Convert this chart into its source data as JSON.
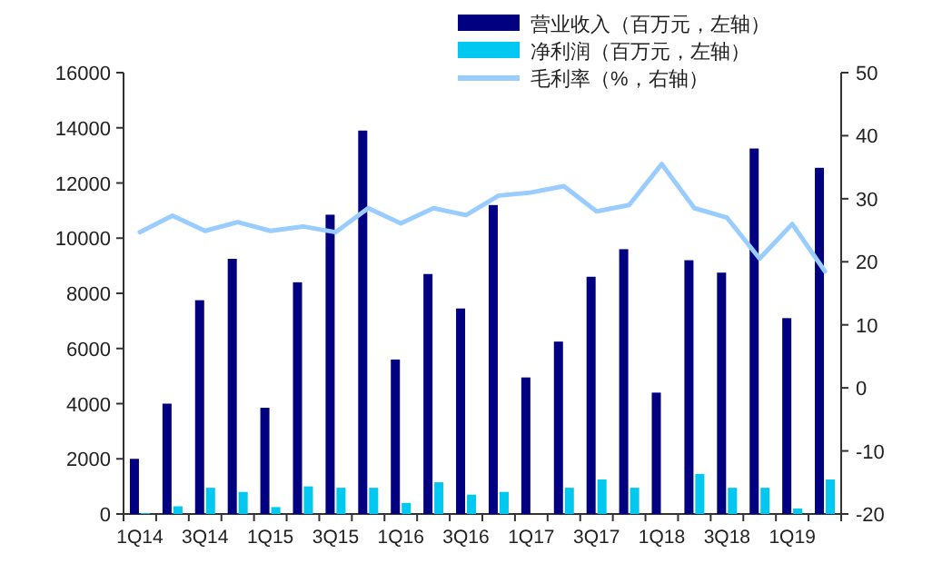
{
  "chart_data": {
    "type": "bar",
    "categories": [
      "1Q14",
      null,
      "3Q14",
      null,
      "1Q15",
      null,
      "3Q15",
      null,
      "1Q16",
      null,
      "3Q16",
      null,
      "1Q17",
      null,
      "3Q17",
      null,
      "1Q18",
      null,
      "3Q18",
      null,
      "1Q19",
      null
    ],
    "series": [
      {
        "name": "营业收入（百万元，左轴）",
        "color": "#000080",
        "values": [
          2000,
          4000,
          7750,
          9250,
          3850,
          8400,
          10850,
          13900,
          5600,
          8700,
          7450,
          11200,
          4950,
          6250,
          8600,
          9600,
          4400,
          9200,
          8750,
          13250,
          7100,
          12550
        ]
      },
      {
        "name": "净利润（百万元，左轴）",
        "color": "#00c8f0",
        "values": [
          30,
          280,
          950,
          800,
          250,
          1000,
          950,
          950,
          400,
          1150,
          700,
          800,
          0,
          950,
          1250,
          950,
          0,
          1450,
          950,
          950,
          200,
          1250
        ]
      },
      {
        "name": "毛利率（%，右轴）",
        "type": "line",
        "axis": "y2",
        "color": "#99ccff",
        "values": [
          24.7,
          27.3,
          24.9,
          26.3,
          24.9,
          25.6,
          24.7,
          28.5,
          26.1,
          28.5,
          27.4,
          30.5,
          31,
          32,
          28,
          29,
          35.5,
          28.5,
          27,
          20.5,
          26,
          18.5
        ]
      }
    ],
    "ylim": [
      0,
      16000
    ],
    "yticks": [
      0,
      2000,
      4000,
      6000,
      8000,
      10000,
      12000,
      14000,
      16000
    ],
    "y2lim": [
      -20,
      50
    ],
    "y2ticks": [
      -20,
      -10,
      0,
      10,
      20,
      30,
      40,
      50
    ],
    "legend": "top right",
    "grid": false,
    "marker": "none",
    "line_style": "solid"
  }
}
